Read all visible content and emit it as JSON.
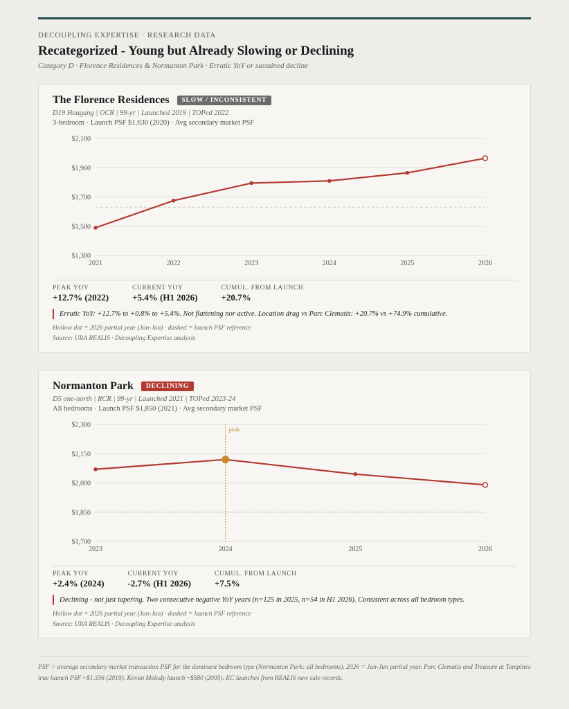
{
  "header": {
    "eyebrow": "DECOUPLING EXPERTISE · RESEARCH DATA",
    "title": "Recategorized - Young but Already Slowing or Declining",
    "subtitle": "Category D · Florence Residences & Normanton Park · Erratic YoY or sustained decline"
  },
  "cards": [
    {
      "title": "The Florence Residences",
      "badge": "SLOW / INCONSISTENT",
      "meta1": "D19 Hougang | OCR | 99-yr | Launched 2019 | TOPed 2022",
      "meta2": "3-bedroom · Launch PSF $1,630 (2020) · Avg secondary market PSF",
      "stats": [
        {
          "label": "PEAK YOY",
          "value": "+12.7% (2022)"
        },
        {
          "label": "CURRENT YOY",
          "value": "+5.4% (H1 2026)"
        },
        {
          "label": "CUMUL. FROM LAUNCH",
          "value": "+20.7%"
        }
      ],
      "note": "Erratic YoY: +12.7% to +0.8% to +5.4%. Not flattening nor active. Location drag vs Parc Clematis: +20.7% vs +74.9% cumulative.",
      "foot1": "Hollow dot = 2026 partial year (Jan-Jun) · dashed = launch PSF reference",
      "foot2": "Source: URA REALIS · Decoupling Expertise analysis"
    },
    {
      "title": "Normanton Park",
      "badge": "DECLINING",
      "meta1": "D5 one-north | RCR | 99-yr | Launched 2021 | TOPed 2023-24",
      "meta2": "All bedrooms · Launch PSF $1,850 (2021) · Avg secondary market PSF",
      "stats": [
        {
          "label": "PEAK YOY",
          "value": "+2.4% (2024)"
        },
        {
          "label": "CURRENT YOY",
          "value": "-2.7% (H1 2026)"
        },
        {
          "label": "CUMUL. FROM LAUNCH",
          "value": "+7.5%"
        }
      ],
      "note": "Declining - not just tapering. Two consecutive negative YoY years (n=125 in 2025, n=54 in H1 2026). Consistent across all bedroom types.",
      "foot1": "Hollow dot = 2026 partial year (Jan-Jun) · dashed = launch PSF reference",
      "foot2": "Source: URA REALIS · Decoupling Expertise analysis"
    }
  ],
  "footer": "PSF = average secondary market transaction PSF for the dominant bedroom type (Normanton Park: all bedrooms). 2026 = Jan-Jun partial year. Parc Clematis and Treasure at Tampines true launch PSF ~$1,336 (2019). Kovan Melody launch ~$580 (2005). EC launches from REALIS new sale records.",
  "chart_data": [
    {
      "type": "line",
      "x": [
        2021,
        2022,
        2023,
        2024,
        2025,
        2026
      ],
      "series": [
        {
          "values": [
            1490,
            1675,
            1795,
            1810,
            1865,
            1965
          ]
        }
      ],
      "yticks": [
        "$1,300",
        "$1,500",
        "$1,700",
        "$1,900",
        "$2,100"
      ],
      "ylim": [
        1300,
        2100
      ],
      "reference_line": 1630,
      "partial_year": 2026,
      "color": "#b13b31"
    },
    {
      "type": "line",
      "x": [
        2023,
        2024,
        2025,
        2026
      ],
      "series": [
        {
          "values": [
            2070,
            2120,
            2045,
            1990
          ]
        }
      ],
      "yticks": [
        "$1,700",
        "$1,850",
        "$2,000",
        "$2,150",
        "$2,300"
      ],
      "ylim": [
        1700,
        2300
      ],
      "reference_line": 1850,
      "partial_year": 2026,
      "peak_x": 2024,
      "peak_label": "peak",
      "color": "#b13b31",
      "peak_color": "#c98a2e"
    }
  ]
}
